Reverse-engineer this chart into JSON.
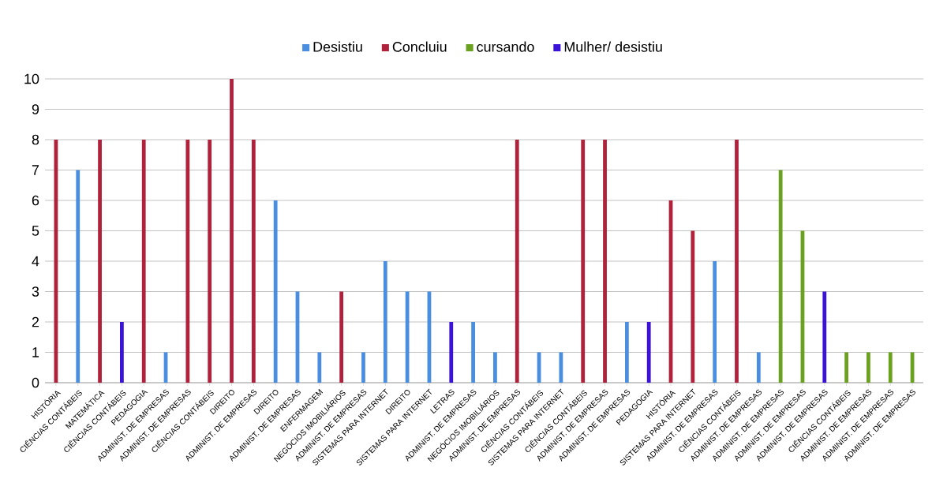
{
  "chart_data": {
    "type": "bar",
    "categories": [
      "HISTÓRIA",
      "CIÊNCIAS CONTÁBEIS",
      "MATEMÁTICA",
      "CIÊNCIAS CONTÁBEIS",
      "PEDAGOGIA",
      "ADMINIST. DE EMPRESAS",
      "ADMINIST. DE EMPRESAS",
      "CIÊNCIAS CONTÁBEIS",
      "DIREITO",
      "ADMINIST. DE EMPRESAS",
      "DIREITO",
      "ADMINIST. DE EMPRESAS",
      "ENFERMAGEM",
      "NEGÓCIOS IMOBILIÁRIOS",
      "ADMINIST. DE EMPRESAS",
      "SISTEMAS PARA INTERNET",
      "DIREITO",
      "SISTEMAS PARA INTERNET",
      "LETRAS",
      "ADMINIST. DE EMPRESAS",
      "NEGÓCIOS IMOBILIÁRIOS",
      "ADMINIST. DE EMPRESAS",
      "CIÊNCIAS CONTÁBEIS",
      "SISTEMAS PARA INTERNET",
      "CIÊNCIAS CONTÁBEIS",
      "ADMINIST. DE EMPRESAS",
      "ADMINIST. DE EMPRESAS",
      "PEDAGOGIA",
      "HISTÓRIA",
      "SISTEMAS PARA INTERNET",
      "ADMINIST. DE EMPRESAS",
      "CIÊNCIAS CONTÁBEIS",
      "ADMINIST. DE EMPRESAS",
      "ADMINIST. DE EMPRESAS",
      "ADMINIST. DE EMPRESAS",
      "ADMINIST. DE EMPRESAS",
      "CIÊNCIAS CONTÁBEIS",
      "ADMINIST. DE EMPRESAS",
      "ADMINIST. DE EMPRESAS",
      "ADMINIST. DE EMPRESAS"
    ],
    "series": [
      {
        "name": "Desistiu",
        "color": "#4a8ee0",
        "values": [
          null,
          7,
          null,
          null,
          null,
          1,
          null,
          null,
          null,
          null,
          6,
          3,
          1,
          null,
          1,
          4,
          3,
          3,
          null,
          2,
          1,
          null,
          1,
          1,
          null,
          null,
          2,
          null,
          null,
          null,
          4,
          null,
          1,
          null,
          null,
          null,
          null,
          null,
          null,
          null
        ]
      },
      {
        "name": "Concluiu",
        "color": "#b0213c",
        "values": [
          8,
          null,
          8,
          null,
          8,
          null,
          8,
          8,
          10,
          8,
          null,
          null,
          null,
          3,
          null,
          null,
          null,
          null,
          null,
          null,
          null,
          8,
          null,
          null,
          8,
          8,
          null,
          null,
          6,
          5,
          null,
          8,
          null,
          null,
          null,
          null,
          null,
          null,
          null,
          null
        ]
      },
      {
        "name": "cursando",
        "color": "#6aa121",
        "values": [
          null,
          null,
          null,
          null,
          null,
          null,
          null,
          null,
          null,
          null,
          null,
          null,
          null,
          null,
          null,
          null,
          null,
          null,
          null,
          null,
          null,
          null,
          null,
          null,
          null,
          null,
          null,
          null,
          null,
          null,
          null,
          null,
          null,
          7,
          5,
          null,
          1,
          1,
          1,
          1
        ]
      },
      {
        "name": "Mulher/ desistiu",
        "color": "#3a12d8",
        "values": [
          null,
          null,
          null,
          2,
          null,
          null,
          null,
          null,
          null,
          null,
          null,
          null,
          null,
          null,
          null,
          null,
          null,
          null,
          2,
          null,
          null,
          null,
          null,
          null,
          null,
          null,
          null,
          2,
          null,
          null,
          null,
          null,
          null,
          null,
          null,
          3,
          null,
          null,
          null,
          null
        ]
      }
    ],
    "ylim": [
      0,
      10
    ],
    "yticks": [
      0,
      1,
      2,
      3,
      4,
      5,
      6,
      7,
      8,
      9,
      10
    ],
    "grid": "y",
    "legend": "top"
  }
}
